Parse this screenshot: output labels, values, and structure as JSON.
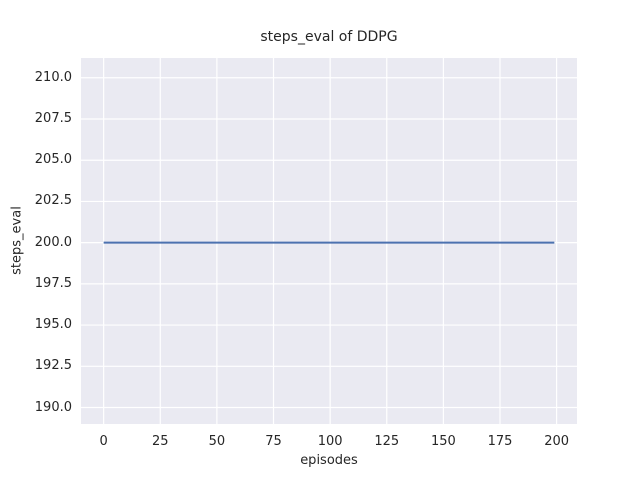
{
  "chart_data": {
    "type": "line",
    "title": "steps_eval of DDPG",
    "xlabel": "episodes",
    "ylabel": "steps_eval",
    "x_ticks": [
      0,
      25,
      50,
      75,
      100,
      125,
      150,
      175,
      200
    ],
    "x_tick_labels": [
      "0",
      "25",
      "50",
      "75",
      "100",
      "125",
      "150",
      "175",
      "200"
    ],
    "y_ticks": [
      190.0,
      192.5,
      195.0,
      197.5,
      200.0,
      202.5,
      205.0,
      207.5,
      210.0
    ],
    "y_tick_labels": [
      "190.0",
      "192.5",
      "195.0",
      "197.5",
      "200.0",
      "202.5",
      "205.0",
      "207.5",
      "210.0"
    ],
    "xlim": [
      -10,
      209
    ],
    "ylim": [
      189.0,
      211.2
    ],
    "grid": true,
    "legend_position": "none",
    "series": [
      {
        "name": "steps_eval",
        "color": "#4c72b0",
        "x": [
          0,
          199
        ],
        "y": [
          200,
          200
        ]
      }
    ],
    "colors": {
      "plot_background": "#eaeaf2",
      "figure_background": "#ffffff",
      "grid_line": "#ffffff",
      "text": "#262626"
    }
  }
}
